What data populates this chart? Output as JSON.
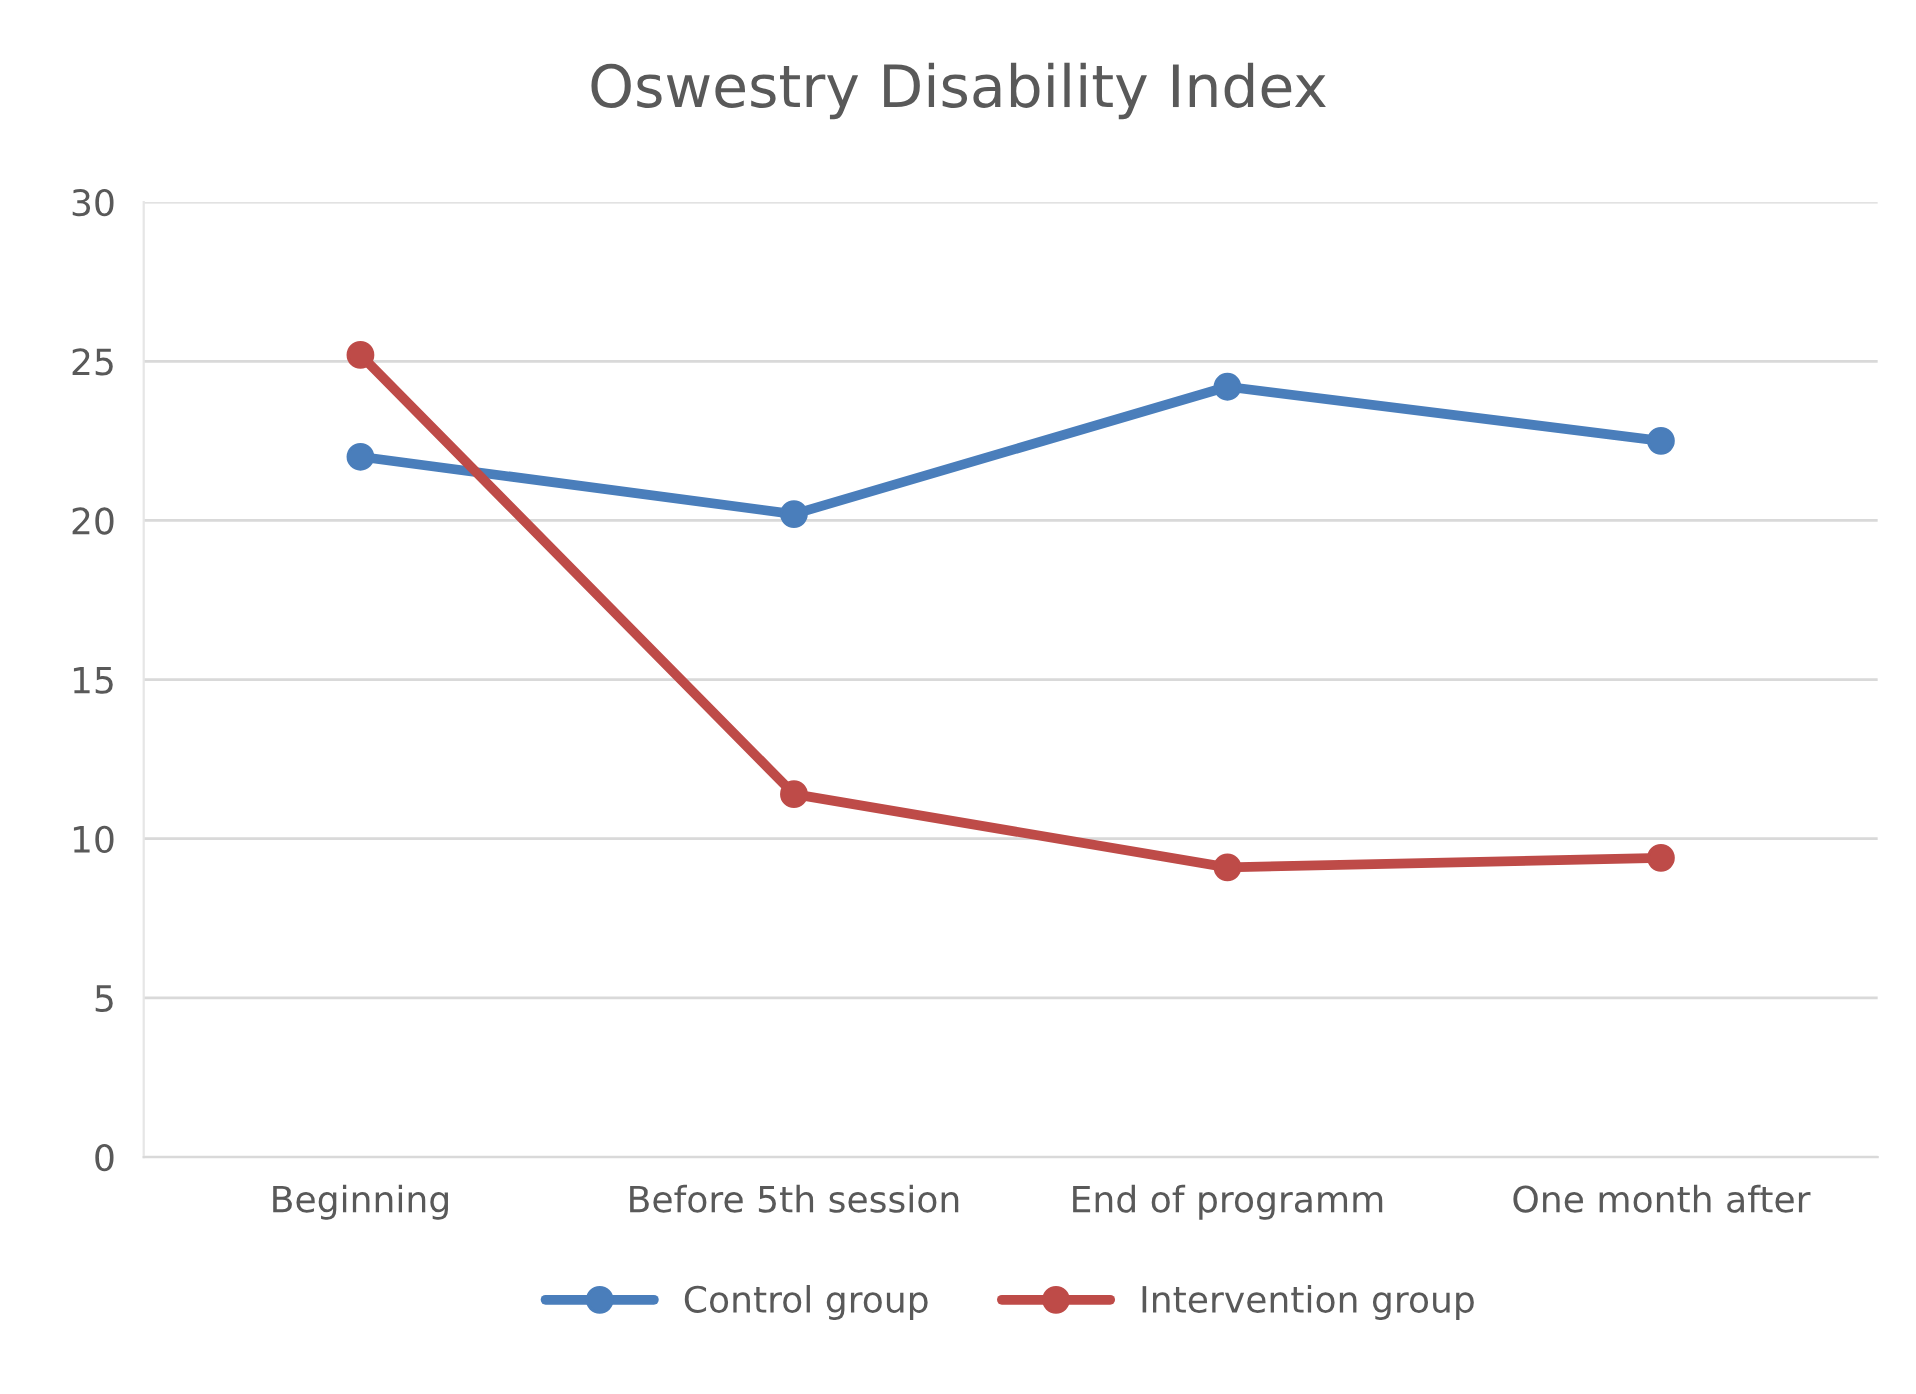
{
  "chart_data": {
    "type": "line",
    "title": "Oswestry Disability Index",
    "categories": [
      "Beginning",
      "Before 5th session",
      "End of programm",
      "One month after"
    ],
    "series": [
      {
        "name": "Control group",
        "color": "#4a7ebb",
        "values": [
          22.0,
          20.2,
          24.2,
          22.5
        ]
      },
      {
        "name": "Intervention group",
        "color": "#be4b48",
        "values": [
          25.2,
          11.4,
          9.1,
          9.4
        ]
      }
    ],
    "ylim": [
      0,
      30
    ],
    "yticks": [
      0,
      5,
      10,
      15,
      20,
      25,
      30
    ],
    "grid": "y",
    "legend": "bottom",
    "marker": "circle",
    "line_style": "solid"
  }
}
